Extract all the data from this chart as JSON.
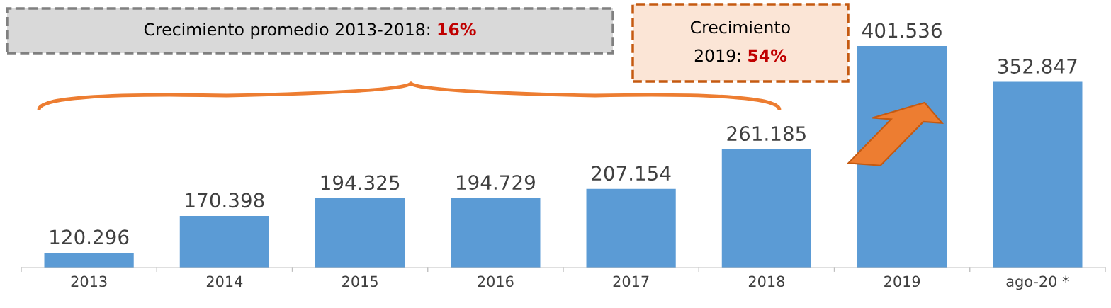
{
  "chart_data": {
    "type": "bar",
    "categories": [
      "2013",
      "2014",
      "2015",
      "2016",
      "2017",
      "2018",
      "2019",
      "ago-20 *"
    ],
    "values": [
      120296,
      170398,
      194325,
      194729,
      207154,
      261185,
      401536,
      352847
    ],
    "value_labels": [
      "120.296",
      "170.398",
      "194.325",
      "194.729",
      "207.154",
      "261.185",
      "401.536",
      "352.847"
    ],
    "color": "#5b9bd5",
    "ylim": [
      100000,
      401536
    ],
    "tick_labels": "x",
    "grid": false,
    "legend": false,
    "annotations": [
      "Crecimiento promedio 2013-2018: 16%",
      "Crecimiento\n2019: 54%"
    ]
  }
}
